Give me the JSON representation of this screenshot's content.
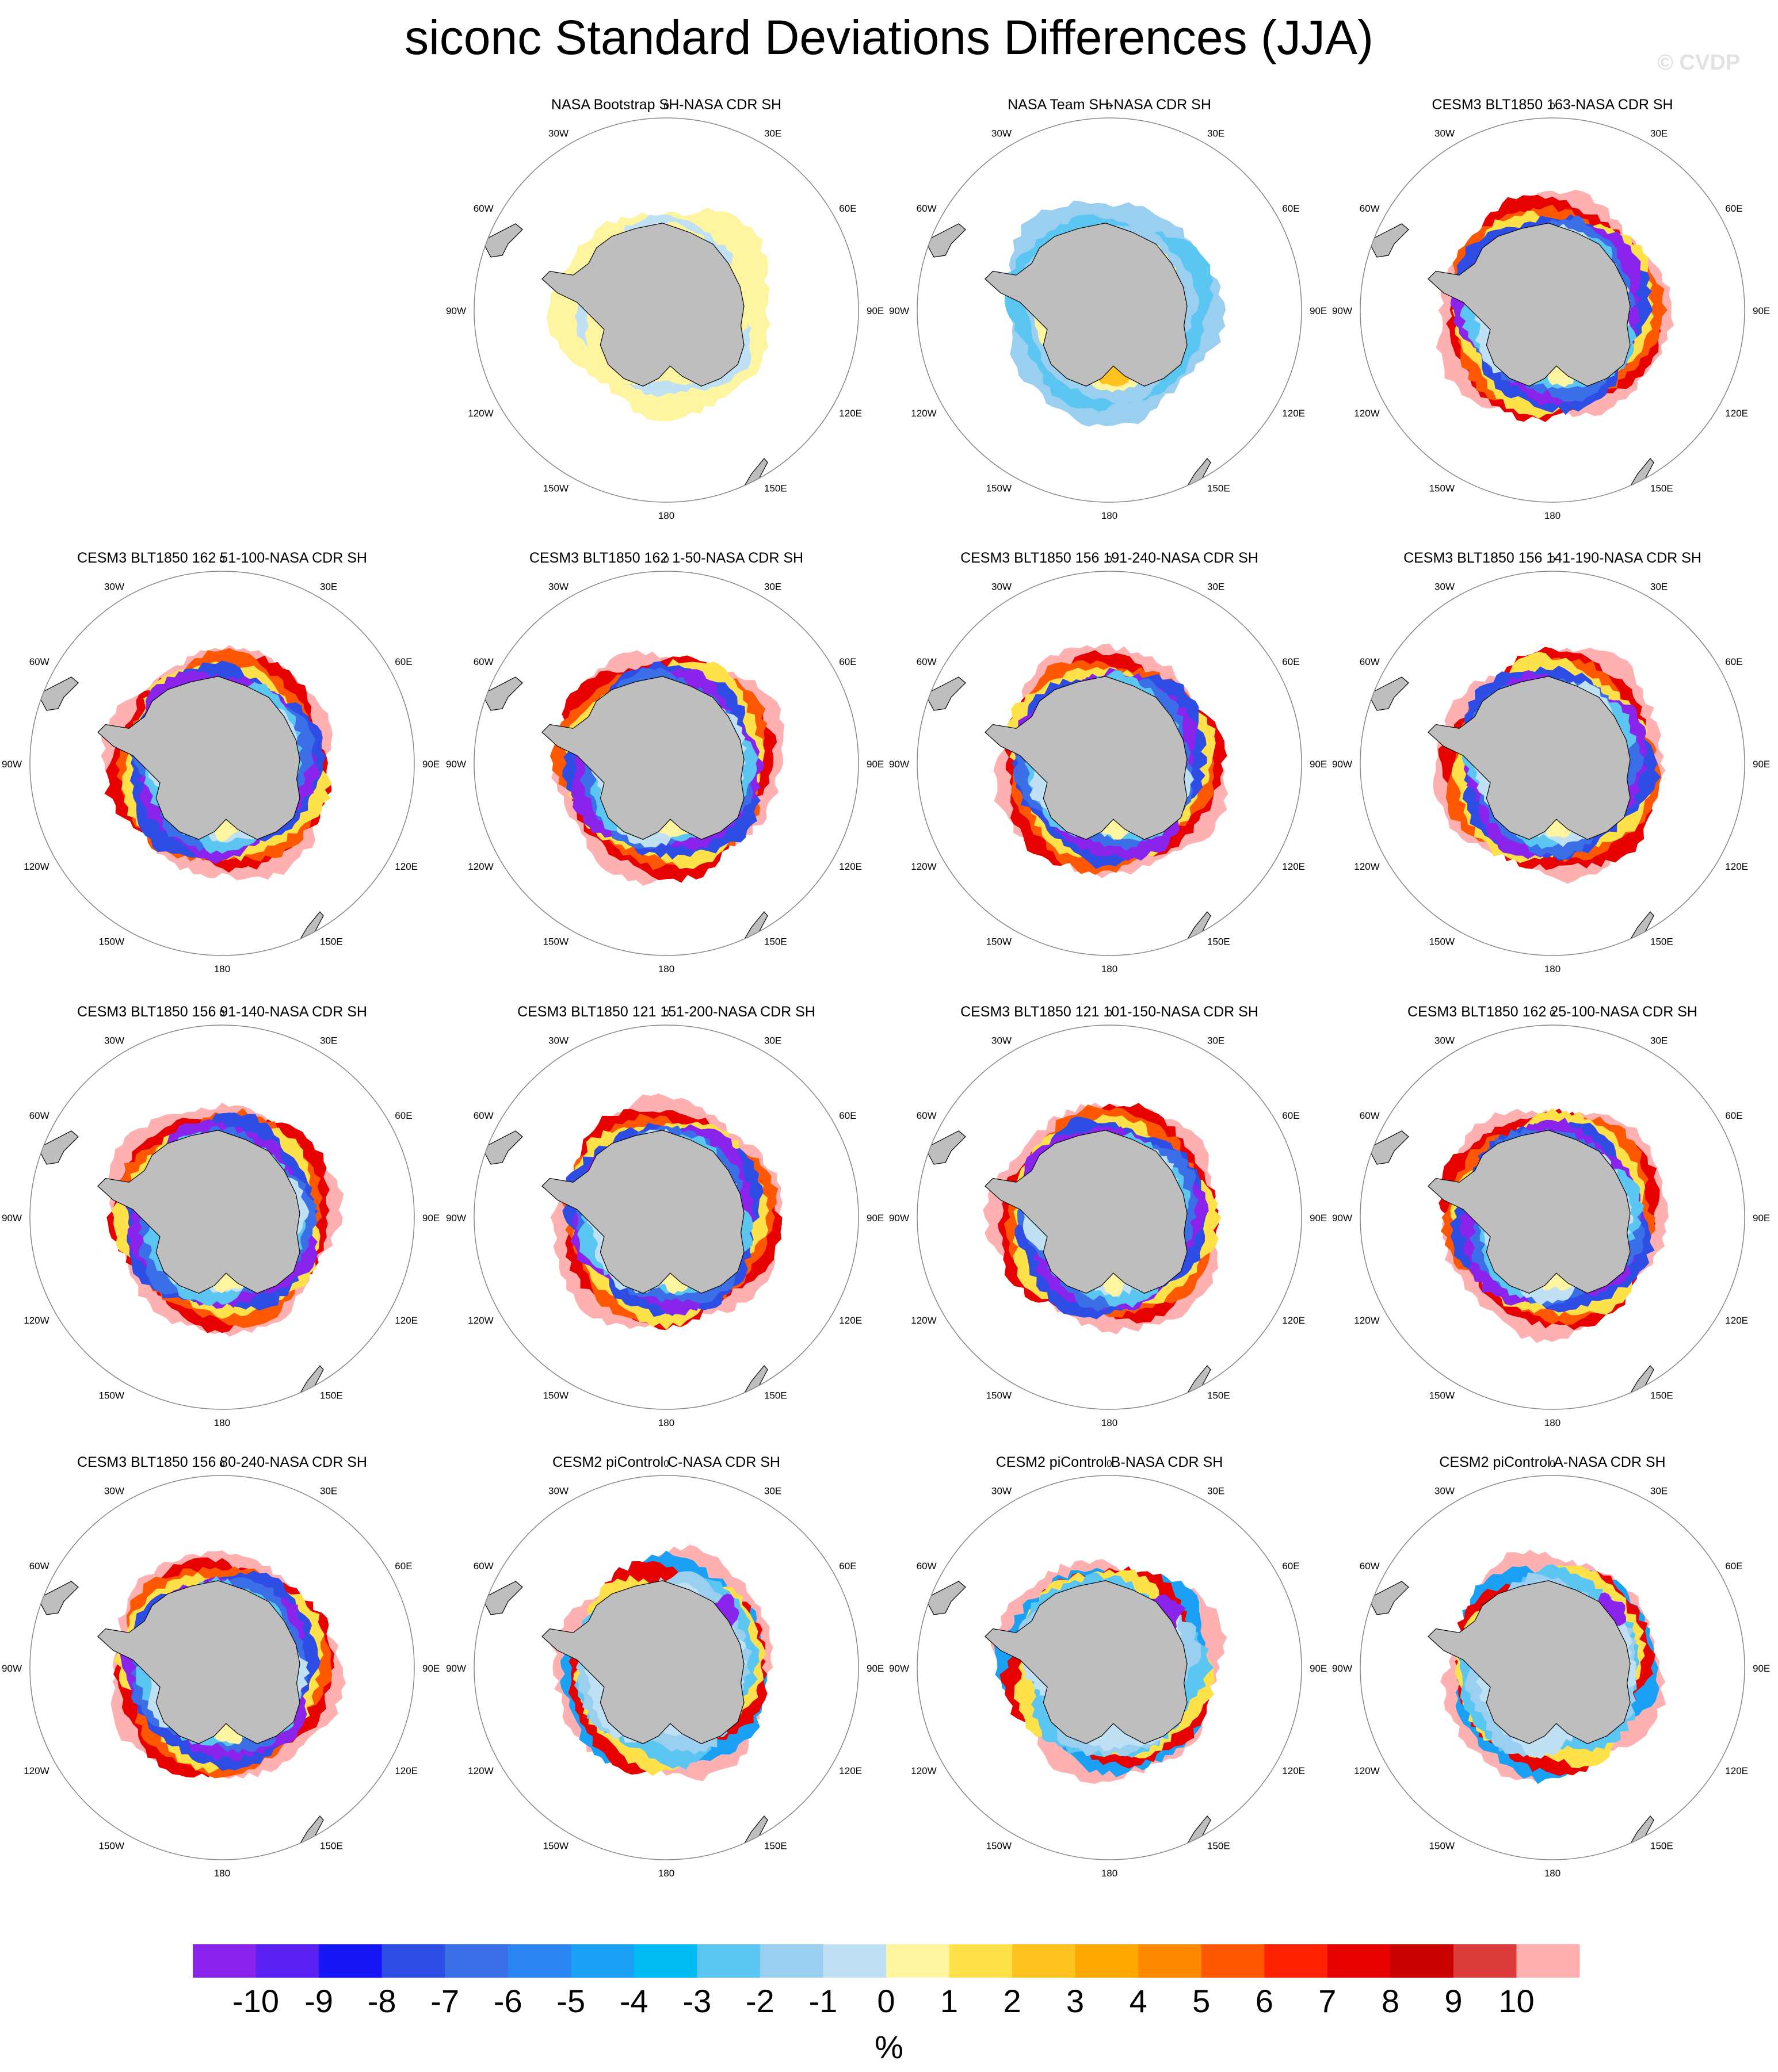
{
  "figure": {
    "title": "siconc Standard Deviations Differences (JJA)",
    "watermark": "© CVDP"
  },
  "lon_labels": [
    "0",
    "30E",
    "60E",
    "90E",
    "120E",
    "150E",
    "180",
    "150W",
    "120W",
    "90W",
    "60W",
    "30W"
  ],
  "panels": [
    {
      "title": "NASA Bootstrap SH-NASA CDR SH",
      "style": "bootstrap"
    },
    {
      "title": "NASA Team SH-NASA CDR SH",
      "style": "team"
    },
    {
      "title": "CESM3 BLT1850 163-NASA CDR SH",
      "style": "cesm3"
    },
    {
      "title": "CESM3 BLT1850 162 51-100-NASA CDR SH",
      "style": "cesm3"
    },
    {
      "title": "CESM3 BLT1850 162 1-50-NASA CDR SH",
      "style": "cesm3"
    },
    {
      "title": "CESM3 BLT1850 156 191-240-NASA CDR SH",
      "style": "cesm3"
    },
    {
      "title": "CESM3 BLT1850 156 141-190-NASA CDR SH",
      "style": "cesm3"
    },
    {
      "title": "CESM3 BLT1850 156 91-140-NASA CDR SH",
      "style": "cesm3"
    },
    {
      "title": "CESM3 BLT1850 121 151-200-NASA CDR SH",
      "style": "cesm3"
    },
    {
      "title": "CESM3 BLT1850 121 101-150-NASA CDR SH",
      "style": "cesm3"
    },
    {
      "title": "CESM3 BLT1850 162 25-100-NASA CDR SH",
      "style": "cesm3"
    },
    {
      "title": "CESM3 BLT1850 156 80-240-NASA CDR SH",
      "style": "cesm3"
    },
    {
      "title": "CESM2 piControl C-NASA CDR SH",
      "style": "cesm2"
    },
    {
      "title": "CESM2 piControl B-NASA CDR SH",
      "style": "cesm2"
    },
    {
      "title": "CESM2 piControl A-NASA CDR SH",
      "style": "cesm2"
    }
  ],
  "colorbar": {
    "unit": "%",
    "labels": [
      "-10",
      "-9",
      "-8",
      "-7",
      "-6",
      "-5",
      "-4",
      "-3",
      "-2",
      "-1",
      "0",
      "1",
      "2",
      "3",
      "4",
      "5",
      "6",
      "7",
      "8",
      "9",
      "10"
    ],
    "colors": [
      "#8a23ec",
      "#5a22f2",
      "#1515f5",
      "#2e4de5",
      "#3a6fe8",
      "#2a85f3",
      "#1aa0f5",
      "#00bcf5",
      "#5cc6f2",
      "#9bcff0",
      "#c0e0f3",
      "#fff5a0",
      "#ffe14a",
      "#ffc21e",
      "#ffa800",
      "#ff8a00",
      "#ff5800",
      "#ff2200",
      "#e60000",
      "#c80000",
      "#dc3c3c",
      "#ffb0b0"
    ]
  },
  "colors": {
    "land": "#bebebe",
    "background": "#ffffff"
  }
}
